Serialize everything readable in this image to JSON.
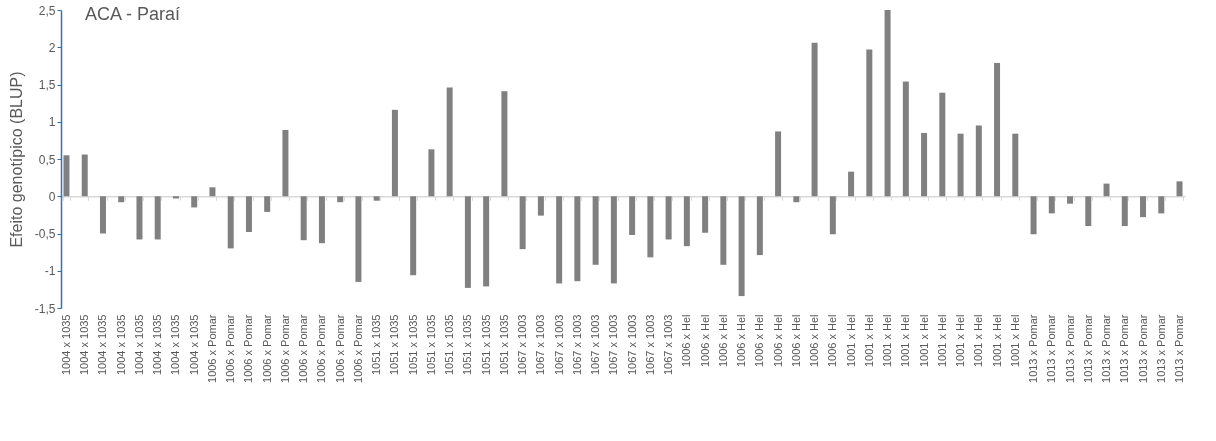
{
  "chart_data": {
    "type": "bar",
    "title": "ACA - Paraí",
    "ylabel": "Efeito genotípico (BLUP)",
    "categories": [
      "1004 x 1035",
      "1004 x 1035",
      "1004 x 1035",
      "1004 x 1035",
      "1004 x 1035",
      "1004 x 1035",
      "1004 x 1035",
      "1004 x 1035",
      "1006 x Pomar",
      "1006 x Pomar",
      "1006 x Pomar",
      "1006 x Pomar",
      "1006 x Pomar",
      "1006 x Pomar",
      "1006 x Pomar",
      "1006 x Pomar",
      "1006 x Pomar",
      "1051 x 1035",
      "1051 x 1035",
      "1051 x 1035",
      "1051 x 1035",
      "1051 x 1035",
      "1051 x 1035",
      "1051 x 1035",
      "1051 x 1035",
      "1067 x 1003",
      "1067 x 1003",
      "1067 x 1003",
      "1067 x 1003",
      "1067 x 1003",
      "1067 x 1003",
      "1067 x 1003",
      "1067 x 1003",
      "1067 x 1003",
      "1006 x Hel",
      "1006 x Hel",
      "1006 x Hel",
      "1006 x Hel",
      "1006 x Hel",
      "1006 x Hel",
      "1006 x Hel",
      "1006 x Hel",
      "1006 x Hel",
      "1001 x Hel",
      "1001 x Hel",
      "1001 x Hel",
      "1001 x Hel",
      "1001 x Hel",
      "1001 x Hel",
      "1001 x Hel",
      "1001 x Hel",
      "1001 x Hel",
      "1001 x Hel",
      "1013 x Pomar",
      "1013 x Pomar",
      "1013 x Pomar",
      "1013 x Pomar",
      "1013 x Pomar",
      "1013 x Pomar",
      "1013 x Pomar",
      "1013 x Pomar",
      "1013 x Pomar"
    ],
    "values": [
      0.55,
      0.56,
      -0.5,
      -0.08,
      -0.58,
      -0.58,
      -0.03,
      -0.15,
      0.12,
      -0.7,
      -0.48,
      -0.21,
      0.89,
      -0.59,
      -0.63,
      -0.08,
      -1.15,
      -0.06,
      1.16,
      -1.06,
      0.63,
      1.46,
      -1.23,
      -1.21,
      1.41,
      -0.71,
      -0.26,
      -1.17,
      -1.14,
      -0.92,
      -1.17,
      -0.52,
      -0.82,
      -0.58,
      -0.67,
      -0.49,
      -0.92,
      -1.34,
      -0.79,
      0.87,
      -0.08,
      2.06,
      -0.51,
      0.33,
      1.97,
      2.5,
      1.54,
      0.85,
      1.39,
      0.84,
      0.95,
      1.79,
      0.84,
      -0.51,
      -0.23,
      -0.1,
      -0.4,
      0.17,
      -0.4,
      -0.28,
      -0.23,
      0.2
    ],
    "color": "#808080",
    "ylim": [
      -1.5,
      2.5
    ],
    "yticks": [
      {
        "value": -1.5,
        "label": "-1,5"
      },
      {
        "value": -1,
        "label": "-1"
      },
      {
        "value": -0.5,
        "label": "-0,5"
      },
      0,
      {
        "value": 0.5,
        "label": "0,5"
      },
      1,
      {
        "value": 1.5,
        "label": "1,5"
      },
      2,
      {
        "value": 2.5,
        "label": "2,5"
      }
    ]
  }
}
